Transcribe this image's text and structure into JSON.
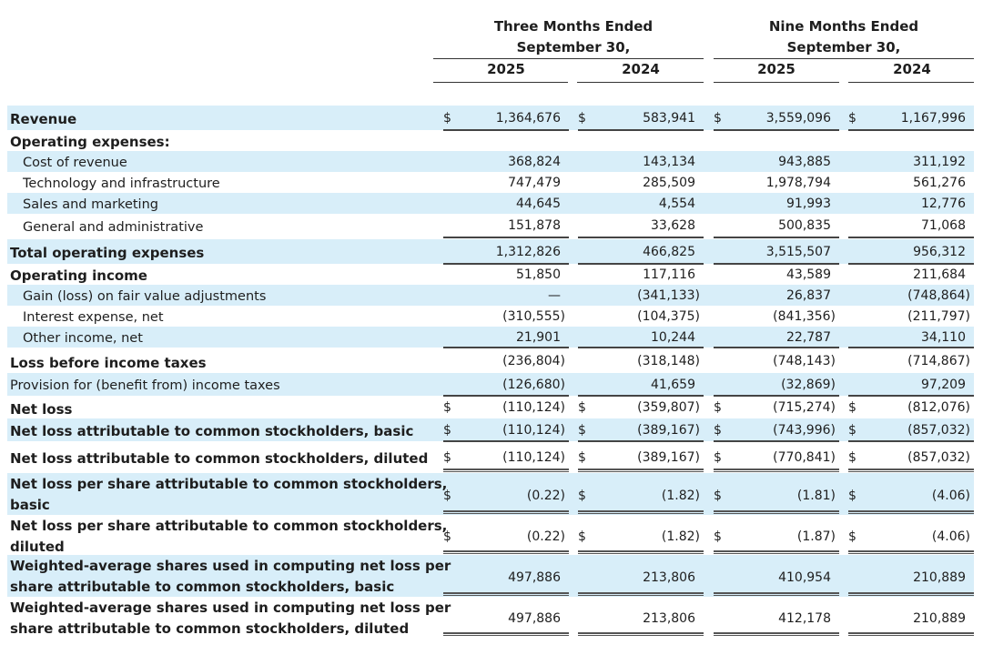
{
  "header": {
    "group1": {
      "line1": "Three Months Ended",
      "line2": "September 30,",
      "years": [
        "2025",
        "2024"
      ]
    },
    "group2": {
      "line1": "Nine Months Ended",
      "line2": "September 30,",
      "years": [
        "2025",
        "2024"
      ]
    }
  },
  "currency_symbol": "$",
  "shade_color": "#d8eef9",
  "rows": [
    {
      "label": "Revenue",
      "bold": true,
      "values": [
        "1,364,676",
        "583,941",
        "3,559,096",
        "1,167,996"
      ],
      "dollar": true
    },
    {
      "label": "Operating expenses:",
      "bold": true,
      "values": [
        "",
        "",
        "",
        ""
      ]
    },
    {
      "label": "Cost of revenue",
      "indent": true,
      "values": [
        "368,824",
        "143,134",
        "943,885",
        "311,192"
      ]
    },
    {
      "label": "Technology and infrastructure",
      "indent": true,
      "values": [
        "747,479",
        "285,509",
        "1,978,794",
        "561,276"
      ]
    },
    {
      "label": "Sales and marketing",
      "indent": true,
      "values": [
        "44,645",
        "4,554",
        "91,993",
        "12,776"
      ]
    },
    {
      "label": "General and administrative",
      "indent": true,
      "values": [
        "151,878",
        "33,628",
        "500,835",
        "71,068"
      ]
    },
    {
      "label": "Total operating expenses",
      "bold": true,
      "values": [
        "1,312,826",
        "466,825",
        "3,515,507",
        "956,312"
      ]
    },
    {
      "label": "Operating income",
      "bold": true,
      "values": [
        "51,850",
        "117,116",
        "43,589",
        "211,684"
      ]
    },
    {
      "label": "Gain (loss) on fair value adjustments",
      "indent": true,
      "values": [
        "—",
        "(341,133)",
        "26,837",
        "(748,864)"
      ]
    },
    {
      "label": "Interest expense, net",
      "indent": true,
      "values": [
        "(310,555)",
        "(104,375)",
        "(841,356)",
        "(211,797)"
      ]
    },
    {
      "label": "Other income, net",
      "indent": true,
      "values": [
        "21,901",
        "10,244",
        "22,787",
        "34,110"
      ]
    },
    {
      "label": "Loss before income taxes",
      "bold": true,
      "values": [
        "(236,804)",
        "(318,148)",
        "(748,143)",
        "(714,867)"
      ]
    },
    {
      "label": "Provision for (benefit from) income taxes",
      "values": [
        "(126,680)",
        "41,659",
        "(32,869)",
        "97,209"
      ]
    },
    {
      "label": "Net loss",
      "bold": true,
      "values": [
        "(110,124)",
        "(359,807)",
        "(715,274)",
        "(812,076)"
      ],
      "dollar": true
    },
    {
      "label": "Net loss attributable to common stockholders, basic",
      "bold": true,
      "values": [
        "(110,124)",
        "(389,167)",
        "(743,996)",
        "(857,032)"
      ],
      "dollar": true
    },
    {
      "label": "Net loss attributable to common stockholders, diluted",
      "bold": true,
      "values": [
        "(110,124)",
        "(389,167)",
        "(770,841)",
        "(857,032)"
      ],
      "dollar": true
    },
    {
      "label": "Net loss per share attributable to common stockholders,",
      "label2": "basic",
      "bold": true,
      "values": [
        "(0.22)",
        "(1.82)",
        "(1.81)",
        "(4.06)"
      ],
      "dollar": true
    },
    {
      "label": "Net loss per share attributable to common stockholders,",
      "label2": "diluted",
      "bold": true,
      "values": [
        "(0.22)",
        "(1.82)",
        "(1.87)",
        "(4.06)"
      ],
      "dollar": true
    },
    {
      "label": "Weighted-average shares used in computing net loss per",
      "label2": "share attributable to common stockholders, basic",
      "bold": true,
      "values": [
        "497,886",
        "213,806",
        "410,954",
        "210,889"
      ]
    },
    {
      "label": "Weighted-average shares used in computing net loss per",
      "label2": "share attributable to common stockholders, diluted",
      "bold": true,
      "values": [
        "497,886",
        "213,806",
        "412,178",
        "210,889"
      ]
    }
  ]
}
